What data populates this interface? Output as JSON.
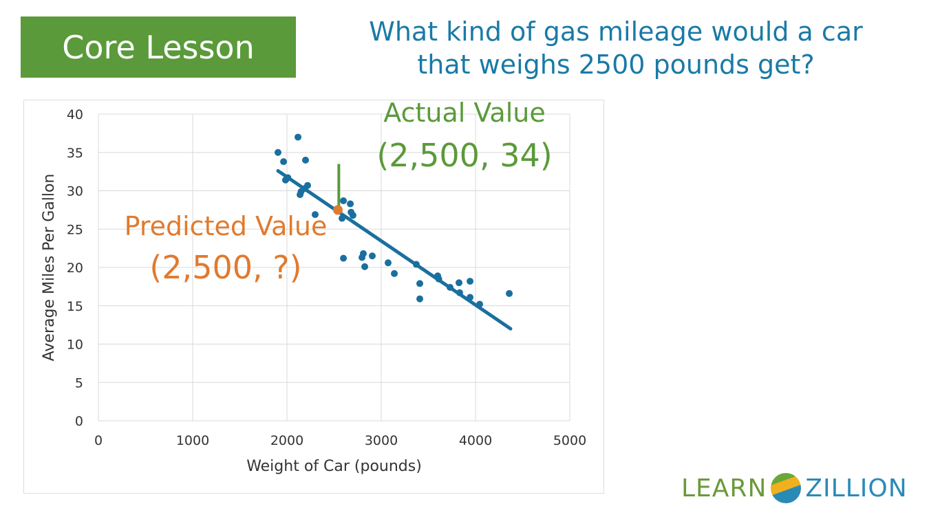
{
  "badge": {
    "label": "Core Lesson",
    "color": "#5a9a3a"
  },
  "question": {
    "line1": "What kind of gas mileage would a car",
    "line2": "that weighs 2500 pounds get?"
  },
  "logo": {
    "left": "LEARN",
    "right": "ZILLION"
  },
  "chart_data": {
    "type": "scatter",
    "xlabel": "Weight of Car (pounds)",
    "ylabel": "Average Miles Per Gallon",
    "xlim": [
      0,
      5000
    ],
    "ylim": [
      0,
      40
    ],
    "xticks": [
      0,
      1000,
      2000,
      3000,
      4000,
      5000
    ],
    "yticks": [
      0,
      5,
      10,
      15,
      20,
      25,
      30,
      35,
      40
    ],
    "grid": true,
    "series": [
      {
        "color": "#1a6f9e",
        "points": [
          [
            1905,
            35
          ],
          [
            1964,
            33.8
          ],
          [
            2117,
            37
          ],
          [
            2197,
            34
          ],
          [
            1985,
            31.4
          ],
          [
            2010,
            31.7
          ],
          [
            2219,
            30.7
          ],
          [
            2190,
            30.3
          ],
          [
            2139,
            29.5
          ],
          [
            2150,
            29.9
          ],
          [
            2299,
            26.9
          ],
          [
            2599,
            28.7
          ],
          [
            2672,
            28.3
          ],
          [
            2584,
            26.4
          ],
          [
            2680,
            27.2
          ],
          [
            2700,
            26.8
          ],
          [
            2599,
            21.2
          ],
          [
            2796,
            21.3
          ],
          [
            2810,
            21.8
          ],
          [
            2825,
            20.1
          ],
          [
            2905,
            21.5
          ],
          [
            3073,
            20.6
          ],
          [
            3139,
            19.2
          ],
          [
            3372,
            20.4
          ],
          [
            3409,
            17.9
          ],
          [
            3409,
            15.9
          ],
          [
            3599,
            18.9
          ],
          [
            3610,
            18.5
          ],
          [
            3730,
            17.4
          ],
          [
            3825,
            18.0
          ],
          [
            3942,
            18.2
          ],
          [
            3832,
            16.7
          ],
          [
            3942,
            16.1
          ],
          [
            4044,
            15.2
          ],
          [
            4358,
            16.6
          ]
        ]
      }
    ],
    "trendline": {
      "color": "#1a6f9e",
      "from": [
        1905,
        32.6
      ],
      "to": [
        4372,
        12.0
      ]
    },
    "actual": {
      "point": [
        2550,
        33.5
      ],
      "color": "#5a9a3a",
      "label": "Actual Value",
      "coords": "(2,500, 34)"
    },
    "predicted": {
      "point": [
        2540,
        27.5
      ],
      "color": "#e07a2e",
      "label": "Predicted Value",
      "coords": "(2,500, ?)"
    }
  }
}
